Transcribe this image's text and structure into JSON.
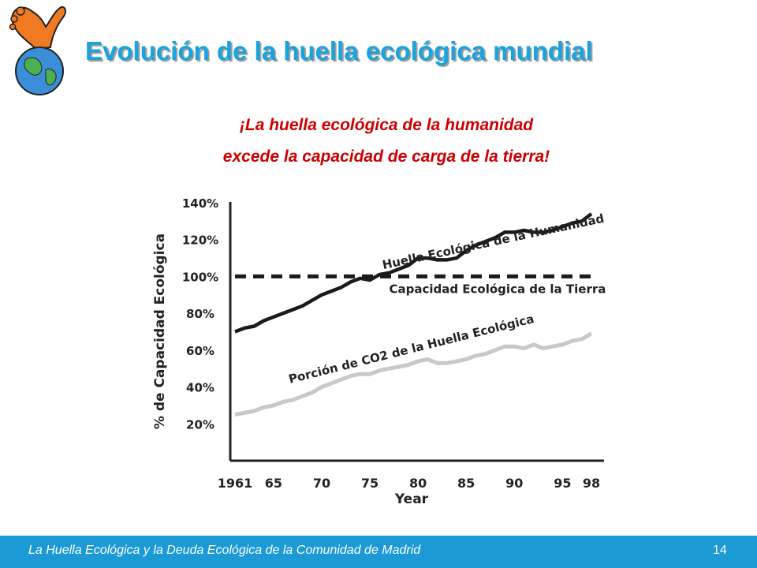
{
  "slide": {
    "title": "Evolución de la huella ecológica mundial",
    "subtitle_line1": "¡La huella ecológica de la humanidad",
    "subtitle_line2": "excede la capacidad de carga de la tierra!",
    "footer": "La Huella Ecológica y la Deuda Ecológica de la Comunidad de Madrid",
    "page_number": "14"
  },
  "colors": {
    "title": "#1aa3dd",
    "subtitle": "#cc0000",
    "footer_bar": "#1b9ad6",
    "series_humanity": "#1a1a1a",
    "series_co2": "#c8c8c8",
    "capacity_line": "#1a1a1a"
  },
  "logo": {
    "icon": "globe-with-foot-icon"
  },
  "chart_data": {
    "type": "line",
    "xlabel": "Year",
    "ylabel": "% de Capacidad Ecológica",
    "xlim": [
      1961,
      1998
    ],
    "ylim": [
      0,
      140
    ],
    "x_ticks": [
      {
        "value": 1961,
        "label": "1961"
      },
      {
        "value": 1965,
        "label": "65"
      },
      {
        "value": 1970,
        "label": "70"
      },
      {
        "value": 1975,
        "label": "75"
      },
      {
        "value": 1980,
        "label": "80"
      },
      {
        "value": 1985,
        "label": "85"
      },
      {
        "value": 1990,
        "label": "90"
      },
      {
        "value": 1995,
        "label": "95"
      },
      {
        "value": 1998,
        "label": "98"
      }
    ],
    "y_ticks": [
      {
        "value": 20,
        "label": "20%"
      },
      {
        "value": 40,
        "label": "40%"
      },
      {
        "value": 60,
        "label": "60%"
      },
      {
        "value": 80,
        "label": "80%"
      },
      {
        "value": 100,
        "label": "100%"
      },
      {
        "value": 120,
        "label": "120%"
      },
      {
        "value": 140,
        "label": "140%"
      }
    ],
    "grid": false,
    "series": [
      {
        "name": "Huella Ecológica de la Humanidad",
        "style": "solid",
        "x": [
          1961,
          1962,
          1963,
          1964,
          1965,
          1966,
          1967,
          1968,
          1969,
          1970,
          1971,
          1972,
          1973,
          1974,
          1975,
          1976,
          1977,
          1978,
          1979,
          1980,
          1981,
          1982,
          1983,
          1984,
          1985,
          1986,
          1987,
          1988,
          1989,
          1990,
          1991,
          1992,
          1993,
          1994,
          1995,
          1996,
          1997,
          1998
        ],
        "values": [
          70,
          72,
          73,
          76,
          78,
          80,
          82,
          84,
          87,
          90,
          92,
          94,
          97,
          99,
          98,
          101,
          102,
          104,
          106,
          110,
          110,
          109,
          109,
          110,
          114,
          117,
          119,
          121,
          124,
          124,
          125,
          124,
          124,
          125,
          127,
          129,
          130,
          134
        ]
      },
      {
        "name": "Capacidad Ecológica de la Tierra",
        "style": "dashed",
        "x": [
          1961,
          1998
        ],
        "values": [
          100,
          100
        ]
      },
      {
        "name": "Porción de CO2 de la Huella Ecológica",
        "style": "solid-light",
        "x": [
          1961,
          1962,
          1963,
          1964,
          1965,
          1966,
          1967,
          1968,
          1969,
          1970,
          1971,
          1972,
          1973,
          1974,
          1975,
          1976,
          1977,
          1978,
          1979,
          1980,
          1981,
          1982,
          1983,
          1984,
          1985,
          1986,
          1987,
          1988,
          1989,
          1990,
          1991,
          1992,
          1993,
          1994,
          1995,
          1996,
          1997,
          1998
        ],
        "values": [
          25,
          26,
          27,
          29,
          30,
          32,
          33,
          35,
          37,
          40,
          42,
          44,
          46,
          47,
          47,
          49,
          50,
          51,
          52,
          54,
          55,
          53,
          53,
          54,
          55,
          57,
          58,
          60,
          62,
          62,
          61,
          63,
          61,
          62,
          63,
          65,
          66,
          69
        ]
      }
    ],
    "annotations": [
      {
        "text": "Huella Ecológica de la Humanidad",
        "x": 1976.4,
        "y": 104,
        "angle": -12
      },
      {
        "text": "Capacidad Ecológica de la Tierra",
        "x": 1977,
        "y": 91,
        "angle": 0
      },
      {
        "text": "Porción de CO2 de la Huella Ecológica",
        "x": 1966.7,
        "y": 42,
        "angle": -14
      }
    ]
  }
}
